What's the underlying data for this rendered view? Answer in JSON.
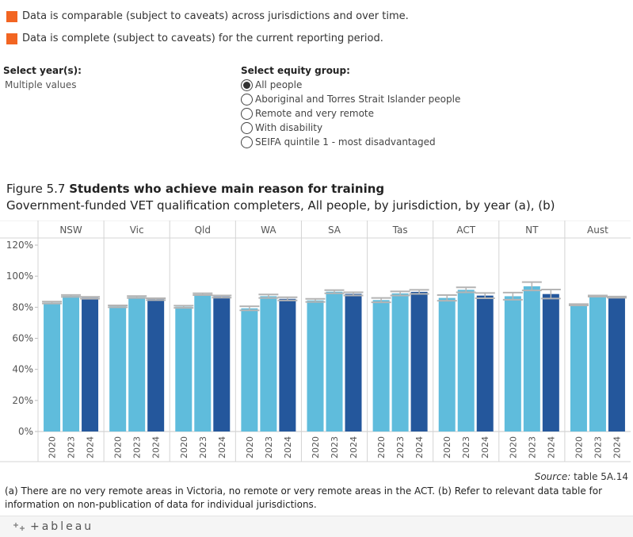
{
  "legend": {
    "items": [
      {
        "label": "Data is comparable (subject to caveats) across jurisdictions and over time.",
        "color": "#f26522"
      },
      {
        "label": "Data is complete (subject to caveats) for the current reporting period.",
        "color": "#f26522"
      }
    ]
  },
  "filters": {
    "year": {
      "title": "Select year(s):",
      "value": "Multiple values"
    },
    "equity": {
      "title": "Select equity group:",
      "selected": "All people",
      "options": [
        "All people",
        "Aboriginal and Torres Strait Islander people",
        "Remote and very remote",
        "With disability",
        "SEIFA quintile 1 - most disadvantaged"
      ]
    }
  },
  "figure": {
    "label": "Figure 5.7 ",
    "title": "Students who achieve main reason for training",
    "subtitle": "Government-funded VET qualification completers, All people, by jurisdiction, by year (a), (b)"
  },
  "chart_data": {
    "type": "bar",
    "jurisdictions": [
      "NSW",
      "Vic",
      "Qld",
      "WA",
      "SA",
      "Tas",
      "ACT",
      "NT",
      "Aust"
    ],
    "years": [
      "2020",
      "2023",
      "2024"
    ],
    "series": [
      {
        "year": "2020",
        "values": [
          83.0,
          80.6,
          80.3,
          79.3,
          84.4,
          84.6,
          86.0,
          87.1,
          81.6
        ]
      },
      {
        "year": "2023",
        "values": [
          87.3,
          86.6,
          88.4,
          87.1,
          90.0,
          88.9,
          91.2,
          93.5,
          87.2
        ]
      },
      {
        "year": "2024",
        "values": [
          86.1,
          85.2,
          86.9,
          85.4,
          88.6,
          89.9,
          87.5,
          88.5,
          86.5
        ]
      }
    ],
    "error_bars": [
      {
        "year": "2020",
        "low": [
          82.4,
          80.0,
          79.6,
          78.0,
          83.4,
          83.2,
          84.2,
          84.8,
          81.2
        ],
        "high": [
          83.6,
          81.2,
          81.0,
          80.6,
          85.4,
          86.0,
          87.8,
          89.4,
          82.0
        ]
      },
      {
        "year": "2023",
        "low": [
          86.7,
          86.0,
          87.8,
          86.0,
          89.0,
          87.6,
          89.6,
          90.8,
          86.8
        ],
        "high": [
          87.9,
          87.2,
          89.0,
          88.2,
          91.0,
          90.2,
          92.8,
          96.2,
          87.6
        ]
      },
      {
        "year": "2024",
        "low": [
          85.5,
          84.6,
          86.2,
          84.4,
          87.6,
          88.6,
          85.8,
          85.6,
          86.1
        ],
        "high": [
          86.7,
          85.8,
          87.6,
          86.4,
          89.6,
          91.2,
          89.2,
          91.4,
          86.9
        ]
      }
    ],
    "y_ticks": [
      "120%",
      "100%",
      "80%",
      "60%",
      "40%",
      "20%",
      "0%"
    ],
    "ylim": [
      0,
      120
    ],
    "colors": {
      "2020": "#5fbcdc",
      "2023": "#5fbcdc",
      "2024": "#24579c",
      "error": "#b4b4b4"
    },
    "grid": false
  },
  "source": {
    "label": "Source:",
    "text": " table 5A.14"
  },
  "note": "(a) There are no very remote areas in Victoria, no remote or very remote areas in the ACT. (b) Refer to relevant data table for information on non-publication of data for individual jurisdictions.",
  "footer": {
    "brand": "+ableau",
    "logo_icon": "tableau-logo-icon"
  }
}
